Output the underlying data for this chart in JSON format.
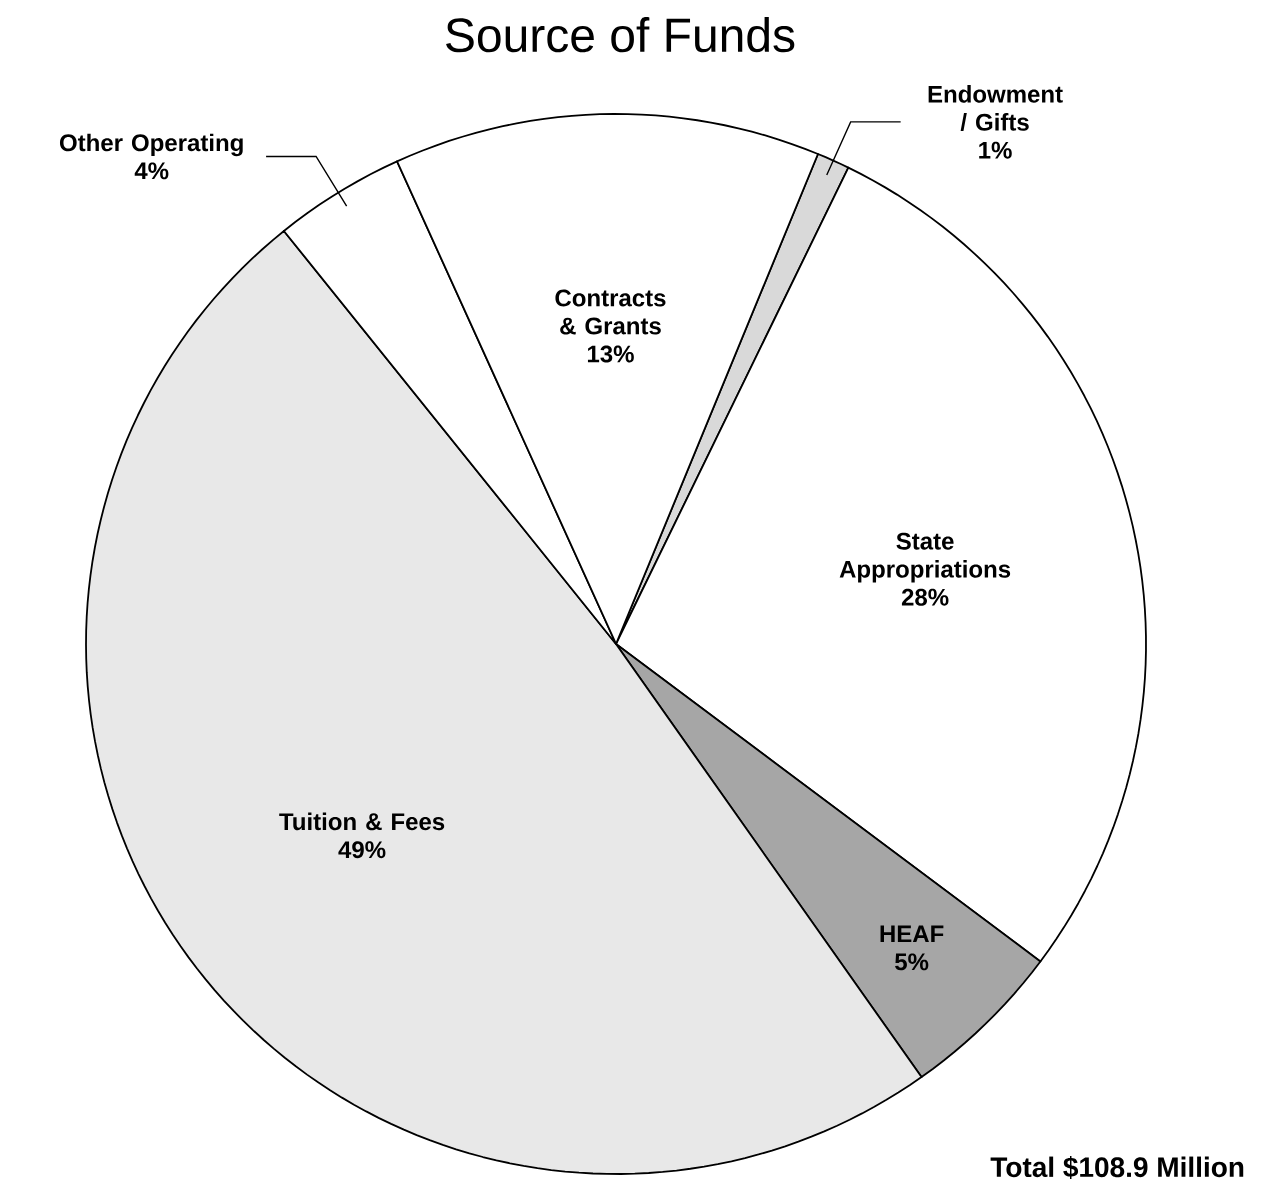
{
  "chart_data": {
    "type": "pie",
    "title": "Source of Funds",
    "categories": [
      "Endowment / Gifts",
      "State Appropriations",
      "HEAF",
      "Tuition & Fees",
      "Other Operating",
      "Contracts & Grants"
    ],
    "values": [
      1,
      28,
      5,
      49,
      4,
      13
    ],
    "colors": [
      "#d9d9d9",
      "#ffffff",
      "#a6a6a6",
      "#e8e8e8",
      "#ffffff",
      "#ffffff"
    ],
    "value_labels": [
      "1%",
      "28%",
      "5%",
      "49%",
      "4%",
      "13%"
    ],
    "annotations": [
      "Total $108.9 Million"
    ]
  }
}
